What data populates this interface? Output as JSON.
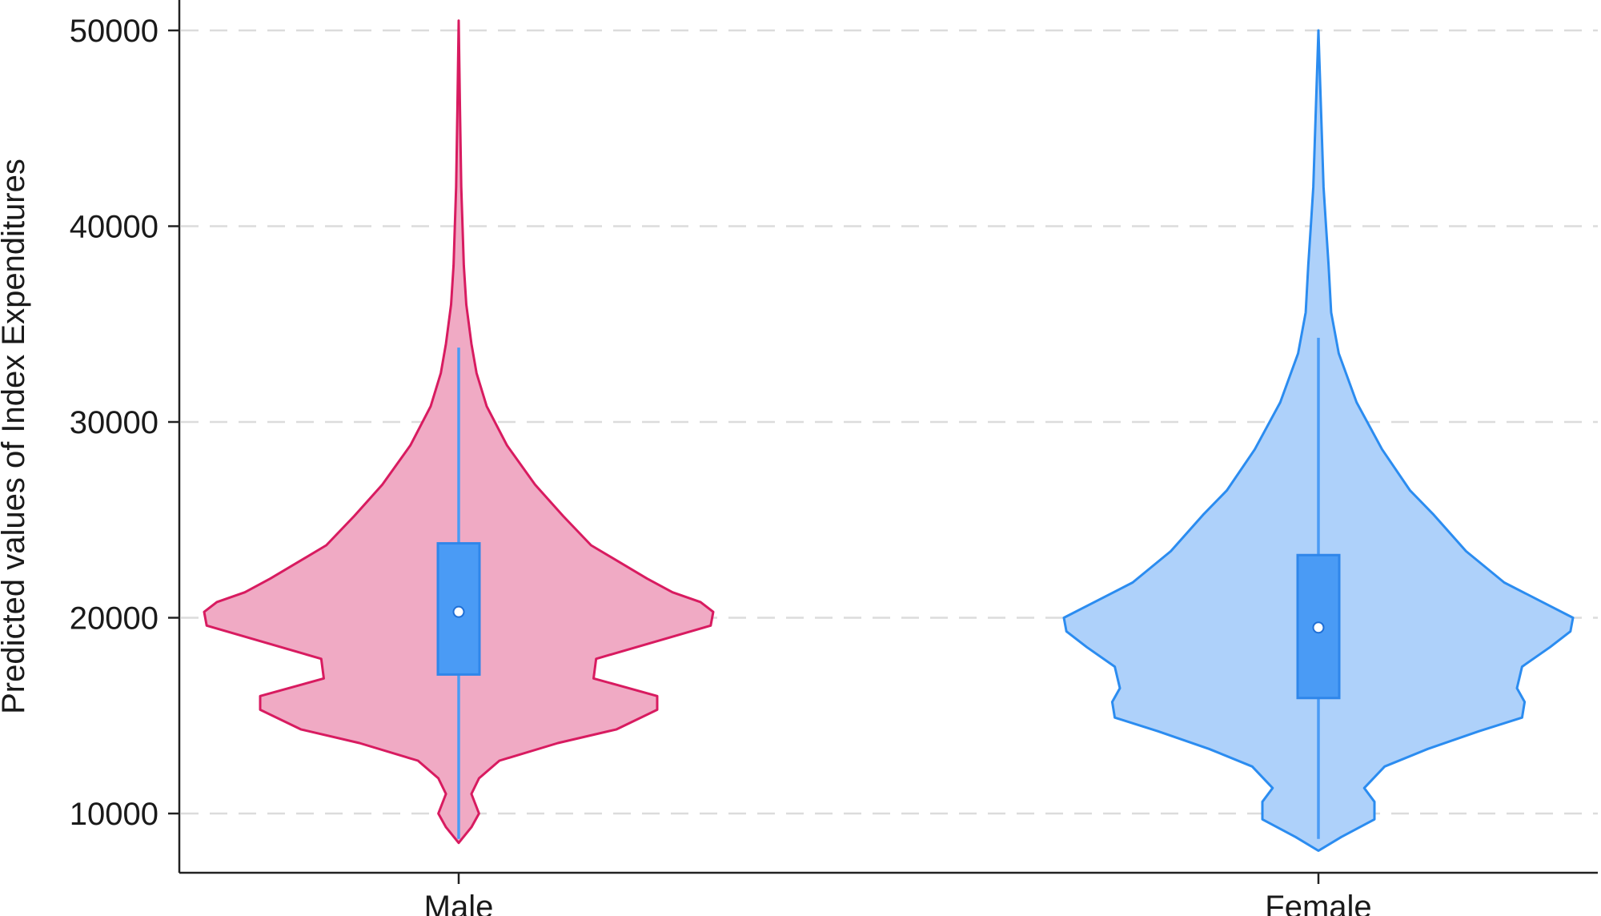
{
  "chart_data": {
    "type": "violin",
    "title": "",
    "xlabel": "",
    "ylabel": "Predicted values of Index Expenditures",
    "ylim": [
      7000,
      51500
    ],
    "yticks": [
      10000,
      20000,
      30000,
      40000,
      50000
    ],
    "ytick_labels": [
      "10000",
      "20000",
      "30000",
      "40000",
      "50000"
    ],
    "grid": "horizontal-dashed",
    "categories": [
      "Male",
      "Female"
    ],
    "series": [
      {
        "category": "Male",
        "fill_color": "#f0aac4",
        "line_color": "#d81b60",
        "box_color": "#4a9bf5",
        "median": 20300,
        "q1": 17100,
        "q3": 23800,
        "whisker_low": 8700,
        "whisker_high": 33800,
        "density": [
          [
            8500,
            0.0
          ],
          [
            9300,
            0.05
          ],
          [
            10000,
            0.08
          ],
          [
            11000,
            0.05
          ],
          [
            11800,
            0.08
          ],
          [
            12700,
            0.16
          ],
          [
            13600,
            0.39
          ],
          [
            14300,
            0.62
          ],
          [
            15300,
            0.78
          ],
          [
            16000,
            0.78
          ],
          [
            16900,
            0.53
          ],
          [
            17900,
            0.54
          ],
          [
            19600,
            0.99
          ],
          [
            20300,
            1.0
          ],
          [
            20800,
            0.95
          ],
          [
            21300,
            0.84
          ],
          [
            22000,
            0.74
          ],
          [
            23700,
            0.52
          ],
          [
            25200,
            0.41
          ],
          [
            26800,
            0.3
          ],
          [
            28800,
            0.19
          ],
          [
            30800,
            0.11
          ],
          [
            32500,
            0.07
          ],
          [
            34000,
            0.05
          ],
          [
            36000,
            0.03
          ],
          [
            38000,
            0.02
          ],
          [
            42000,
            0.01
          ],
          [
            46000,
            0.005
          ],
          [
            50500,
            0.0
          ]
        ]
      },
      {
        "category": "Female",
        "fill_color": "#aed1fa",
        "line_color": "#2b8cf0",
        "box_color": "#4a9bf5",
        "median": 19500,
        "q1": 15900,
        "q3": 23200,
        "whisker_low": 8700,
        "whisker_high": 34300,
        "density": [
          [
            8100,
            0.0
          ],
          [
            8800,
            0.09
          ],
          [
            9700,
            0.22
          ],
          [
            10600,
            0.22
          ],
          [
            11300,
            0.18
          ],
          [
            12400,
            0.26
          ],
          [
            13300,
            0.43
          ],
          [
            14200,
            0.63
          ],
          [
            14900,
            0.8
          ],
          [
            15700,
            0.81
          ],
          [
            16400,
            0.78
          ],
          [
            17500,
            0.8
          ],
          [
            18500,
            0.91
          ],
          [
            19300,
            0.99
          ],
          [
            20000,
            1.0
          ],
          [
            20800,
            0.88
          ],
          [
            21800,
            0.73
          ],
          [
            23400,
            0.58
          ],
          [
            25300,
            0.45
          ],
          [
            26500,
            0.36
          ],
          [
            28600,
            0.25
          ],
          [
            31000,
            0.15
          ],
          [
            33500,
            0.08
          ],
          [
            35600,
            0.05
          ],
          [
            38000,
            0.04
          ],
          [
            40000,
            0.03
          ],
          [
            42000,
            0.02
          ],
          [
            46000,
            0.01
          ],
          [
            50000,
            0.0
          ]
        ]
      }
    ]
  }
}
